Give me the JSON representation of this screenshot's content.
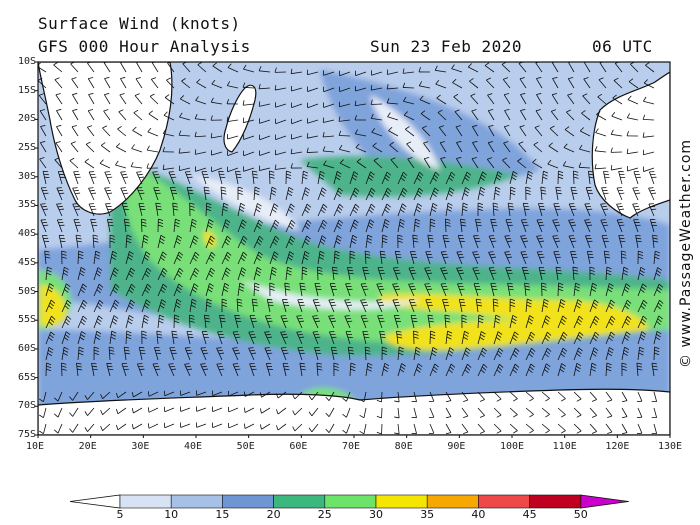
{
  "header": {
    "title": "Surface Wind (knots)",
    "subtitle": "GFS 000 Hour Analysis",
    "datetime": "Sun 23 Feb 2020",
    "time": "06 UTC"
  },
  "credit": "© www.PassageWeather.com",
  "map": {
    "lat_labels": [
      "10S",
      "15S",
      "20S",
      "25S",
      "30S",
      "35S",
      "40S",
      "45S",
      "50S",
      "55S",
      "60S",
      "65S",
      "70S",
      "75S"
    ],
    "lon_labels": [
      "10E",
      "20E",
      "30E",
      "40E",
      "50E",
      "60E",
      "70E",
      "80E",
      "90E",
      "100E",
      "110E",
      "120E",
      "130E"
    ]
  },
  "colorbar": {
    "labels": [
      "5",
      "10",
      "15",
      "20",
      "25",
      "30",
      "35",
      "40",
      "45",
      "50"
    ],
    "colors": [
      "#ffffff",
      "#d7e3f4",
      "#a6c0e6",
      "#6f96d3",
      "#3cb87e",
      "#6ee36a",
      "#f4e600",
      "#f7a800",
      "#ef4848",
      "#c00020",
      "#cc00cc"
    ]
  },
  "palette": {
    "calm": "#e8eef8",
    "light": "#b9cdec",
    "moderate": "#7fa3db",
    "fresh": "#4db38a",
    "strong": "#79e079",
    "gale": "#f1e21a",
    "land": "#ffffff",
    "ice": "#e9edf5"
  }
}
